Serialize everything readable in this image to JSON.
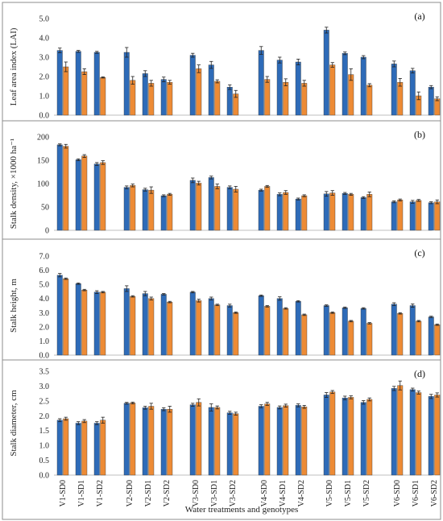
{
  "colors": {
    "s1": "#2e6bb8",
    "s2": "#ed8b35",
    "err": "#222222"
  },
  "x_title": "Water treatments and genotypes",
  "categories": [
    "V1-SD0",
    "V1-SD1",
    "V1-SD2",
    "V2-SD0",
    "V2-SD1",
    "V2-SD2",
    "V3-SD0",
    "V3-SD1",
    "V3-SD2",
    "V4-SD0",
    "V4-SD1",
    "V4-SD2",
    "V5-SD0",
    "V5-SD1",
    "V5-SD2",
    "V6-SD0",
    "V6-SD1",
    "V6-SD2"
  ],
  "chart_data": [
    {
      "type": "bar",
      "panel": "(a)",
      "ylabel": "Leaf area index (LAI)",
      "ylim": [
        0,
        5
      ],
      "yticks": [
        "0.0",
        "1.0",
        "2.0",
        "3.0",
        "4.0",
        "5.0"
      ],
      "series": [
        {
          "values": [
            3.35,
            3.3,
            3.25,
            3.25,
            2.15,
            1.85,
            3.1,
            2.6,
            1.45,
            3.35,
            2.85,
            2.75,
            4.4,
            3.2,
            3.0,
            2.65,
            2.3,
            1.45
          ],
          "errors": [
            0.12,
            0.05,
            0.05,
            0.25,
            0.15,
            0.12,
            0.1,
            0.18,
            0.12,
            0.2,
            0.15,
            0.15,
            0.15,
            0.07,
            0.08,
            0.15,
            0.12,
            0.08
          ]
        },
        {
          "values": [
            2.5,
            2.25,
            1.95,
            1.8,
            1.65,
            1.7,
            2.4,
            1.75,
            1.1,
            1.85,
            1.7,
            1.65,
            2.6,
            2.1,
            1.55,
            1.7,
            1.0,
            0.85
          ],
          "errors": [
            0.25,
            0.15,
            0.03,
            0.2,
            0.15,
            0.1,
            0.2,
            0.08,
            0.18,
            0.15,
            0.18,
            0.15,
            0.12,
            0.3,
            0.08,
            0.2,
            0.2,
            0.1
          ]
        }
      ]
    },
    {
      "type": "bar",
      "panel": "(b)",
      "ylabel": "Stalk density, ×1000 ha⁻¹",
      "ylim": [
        0,
        200
      ],
      "yticks": [
        "0",
        "50",
        "100",
        "150",
        "200"
      ],
      "series": [
        {
          "values": [
            183,
            151,
            142,
            92,
            87,
            74,
            107,
            113,
            92,
            86,
            77,
            67,
            78,
            79,
            70,
            61,
            61,
            59
          ],
          "errors": [
            2,
            2,
            3,
            3,
            3,
            2,
            5,
            3,
            3,
            2,
            3,
            2,
            5,
            2,
            2,
            2,
            3,
            2
          ]
        },
        {
          "values": [
            180,
            159,
            145,
            96,
            86,
            77,
            101,
            94,
            88,
            94,
            81,
            74,
            80,
            77,
            77,
            65,
            64,
            61
          ],
          "errors": [
            4,
            3,
            4,
            3,
            7,
            2,
            4,
            5,
            6,
            2,
            4,
            2,
            5,
            2,
            5,
            2,
            2,
            4
          ]
        }
      ]
    },
    {
      "type": "bar",
      "panel": "(c)",
      "ylabel": "Stalk height, m",
      "ylim": [
        0,
        7
      ],
      "yticks": [
        "0.0",
        "1.0",
        "2.0",
        "3.0",
        "4.0",
        "5.0",
        "6.0",
        "7.0"
      ],
      "series": [
        {
          "values": [
            5.65,
            5.05,
            4.45,
            4.7,
            4.35,
            4.3,
            4.45,
            4.0,
            3.5,
            4.2,
            4.0,
            3.8,
            3.5,
            3.35,
            3.3,
            3.6,
            3.5,
            2.7
          ],
          "errors": [
            0.12,
            0.05,
            0.1,
            0.2,
            0.15,
            0.05,
            0.05,
            0.1,
            0.1,
            0.05,
            0.12,
            0.05,
            0.05,
            0.05,
            0.05,
            0.1,
            0.12,
            0.05
          ]
        },
        {
          "values": [
            5.4,
            4.6,
            4.45,
            4.15,
            4.0,
            3.75,
            3.85,
            3.55,
            3.0,
            3.45,
            3.3,
            2.85,
            3.0,
            2.4,
            2.25,
            2.95,
            2.4,
            2.15
          ],
          "errors": [
            0.05,
            0.05,
            0.05,
            0.05,
            0.1,
            0.05,
            0.1,
            0.05,
            0.05,
            0.05,
            0.05,
            0.05,
            0.05,
            0.05,
            0.05,
            0.05,
            0.05,
            0.05
          ]
        }
      ]
    },
    {
      "type": "bar",
      "panel": "(d)",
      "ylabel": "Stalk diameter, cm",
      "ylim": [
        0,
        3.5
      ],
      "yticks": [
        "0.0",
        "0.5",
        "1.0",
        "1.5",
        "2.0",
        "2.5",
        "3.0",
        "3.5"
      ],
      "series": [
        {
          "values": [
            1.85,
            1.75,
            1.75,
            2.42,
            2.27,
            2.22,
            2.37,
            2.28,
            2.1,
            2.32,
            2.28,
            2.35,
            2.7,
            2.6,
            2.45,
            2.92,
            2.88,
            2.65
          ],
          "errors": [
            0.05,
            0.05,
            0.05,
            0.03,
            0.05,
            0.05,
            0.05,
            0.12,
            0.05,
            0.05,
            0.05,
            0.05,
            0.08,
            0.06,
            0.06,
            0.07,
            0.05,
            0.07
          ]
        },
        {
          "values": [
            1.9,
            1.82,
            1.85,
            2.43,
            2.32,
            2.22,
            2.45,
            2.28,
            2.07,
            2.4,
            2.34,
            2.3,
            2.8,
            2.62,
            2.55,
            3.02,
            2.78,
            2.7
          ],
          "errors": [
            0.05,
            0.05,
            0.1,
            0.03,
            0.1,
            0.1,
            0.12,
            0.05,
            0.05,
            0.05,
            0.05,
            0.05,
            0.05,
            0.05,
            0.05,
            0.15,
            0.05,
            0.07
          ]
        }
      ]
    }
  ]
}
